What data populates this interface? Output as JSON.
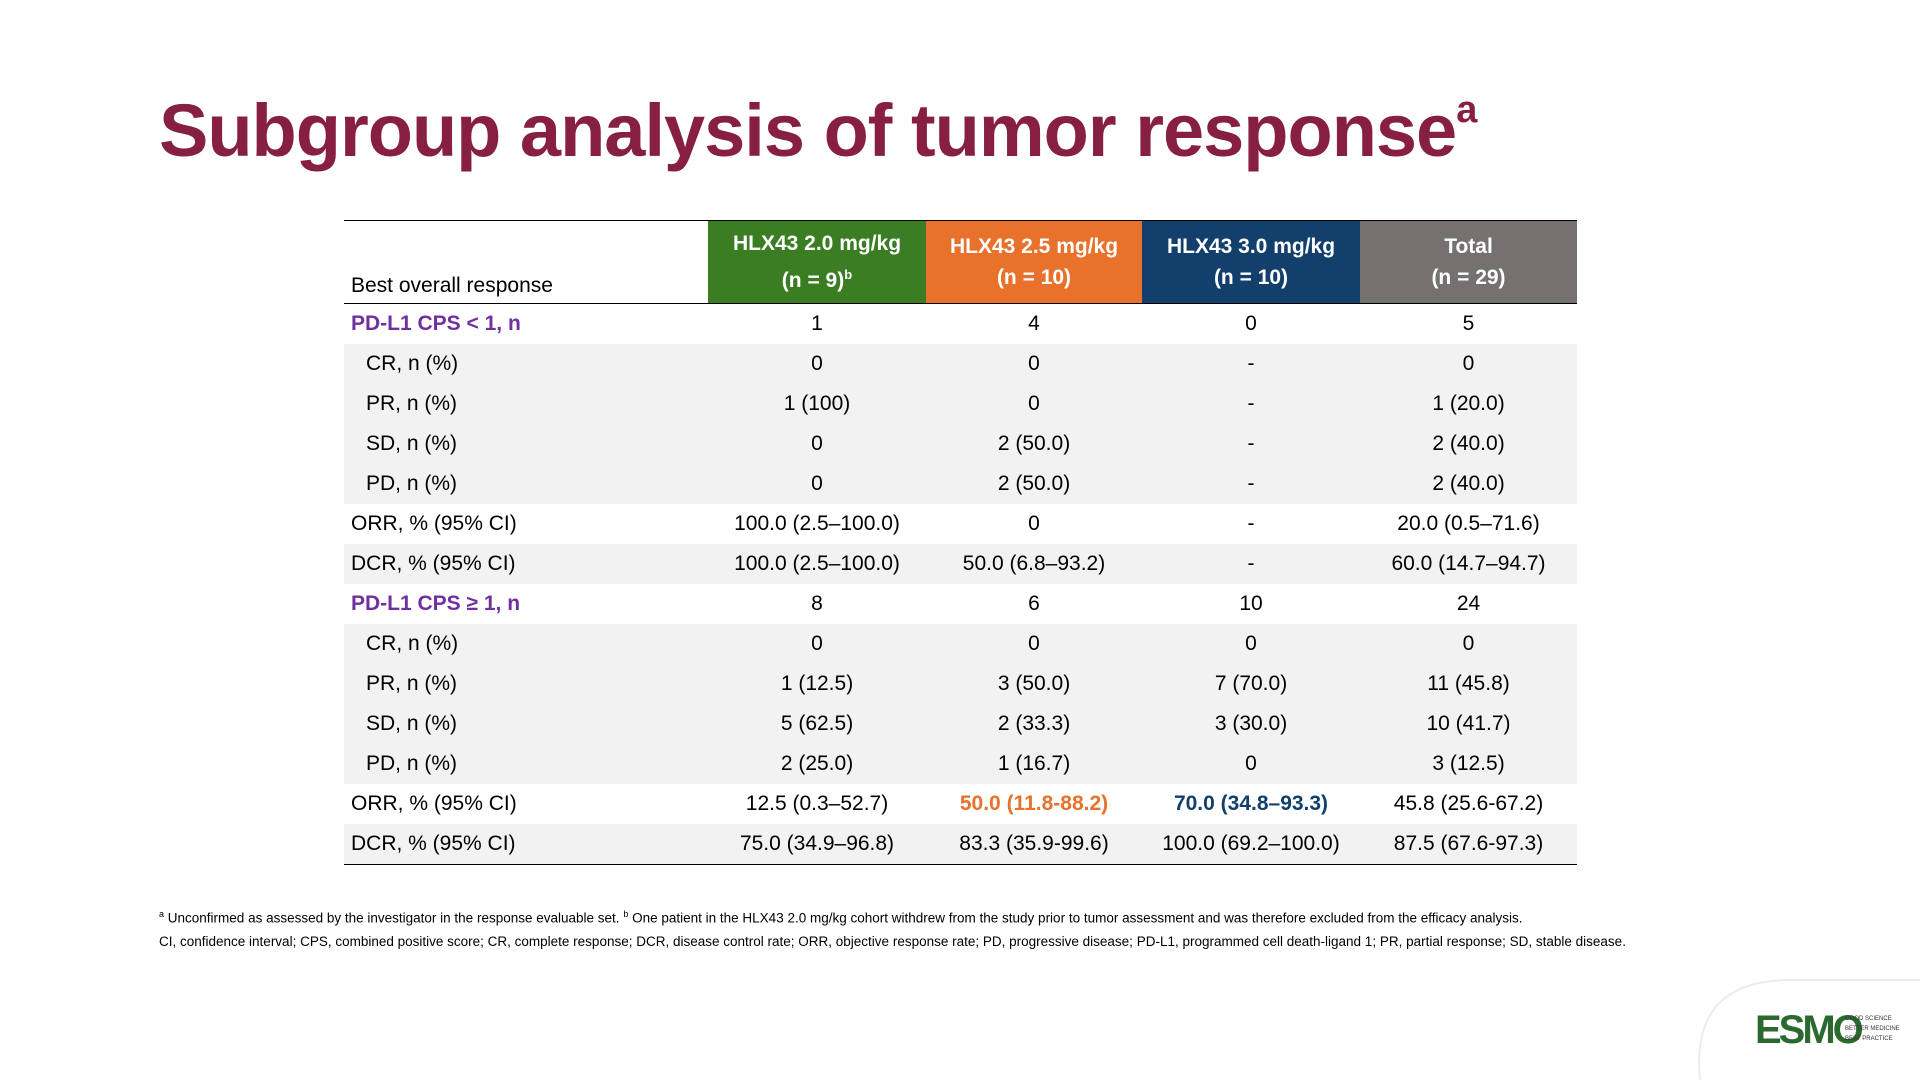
{
  "title": {
    "text": "Subgroup analysis of tumor response",
    "sup": "a"
  },
  "table": {
    "header": {
      "label": "Best overall response",
      "columns": [
        {
          "name": "HLX43 2.0 mg/kg",
          "n": "(n = 9)",
          "sup": "b"
        },
        {
          "name": "HLX43 2.5 mg/kg",
          "n": "(n = 10)"
        },
        {
          "name": "HLX43 3.0 mg/kg",
          "n": "(n = 10)"
        },
        {
          "name": "Total",
          "n": "(n = 29)"
        }
      ]
    },
    "rows": [
      [
        "PD-L1 CPS < 1, n",
        "1",
        "4",
        "0",
        "5"
      ],
      [
        "CR, n (%)",
        "0",
        "0",
        "-",
        "0"
      ],
      [
        "PR, n (%)",
        "1 (100)",
        "0",
        "-",
        "1 (20.0)"
      ],
      [
        "SD, n (%)",
        "0",
        "2 (50.0)",
        "-",
        "2 (40.0)"
      ],
      [
        "PD, n (%)",
        "0",
        "2 (50.0)",
        "-",
        "2 (40.0)"
      ],
      [
        "ORR, % (95% CI)",
        "100.0 (2.5–100.0)",
        "0",
        "-",
        "20.0 (0.5–71.6)"
      ],
      [
        "DCR, % (95% CI)",
        "100.0 (2.5–100.0)",
        "50.0 (6.8–93.2)",
        "-",
        "60.0 (14.7–94.7)"
      ],
      [
        "PD-L1 CPS ≥ 1, n",
        "8",
        "6",
        "10",
        "24"
      ],
      [
        "CR, n (%)",
        "0",
        "0",
        "0",
        "0"
      ],
      [
        "PR, n (%)",
        "1 (12.5)",
        "3 (50.0)",
        "7 (70.0)",
        "11 (45.8)"
      ],
      [
        "SD, n (%)",
        "5 (62.5)",
        "2 (33.3)",
        "3 (30.0)",
        "10 (41.7)"
      ],
      [
        "PD, n (%)",
        "2 (25.0)",
        "1 (16.7)",
        "0",
        "3 (12.5)"
      ],
      [
        "ORR, % (95% CI)",
        "12.5 (0.3–52.7)",
        "50.0 (11.8-88.2)",
        "70.0 (34.8–93.3)",
        "45.8 (25.6-67.2)"
      ],
      [
        "DCR, % (95% CI)",
        "75.0 (34.9–96.8)",
        "83.3 (35.9-99.6)",
        "100.0 (69.2–100.0)",
        "87.5 (67.6-97.3)"
      ]
    ]
  },
  "footnotes": {
    "line1": {
      "sup_a": "a",
      "text_a": "Unconfirmed as assessed by the investigator in the response evaluable set.",
      "sup_b": "b",
      "text_b": "One patient in the HLX43 2.0 mg/kg cohort withdrew from the study prior to tumor assessment and was therefore excluded from the efficacy analysis."
    },
    "line2": "CI, confidence interval; CPS, combined positive score; CR, complete response; DCR, disease control rate; ORR, objective response rate; PD, progressive disease; PD-L1, programmed cell death-ligand 1; PR, partial response; SD, stable disease."
  },
  "logo": {
    "name": "ESMO",
    "tagline": [
      "GOOD SCIENCE",
      "BETTER MEDICINE",
      "BEST PRACTICE"
    ]
  }
}
